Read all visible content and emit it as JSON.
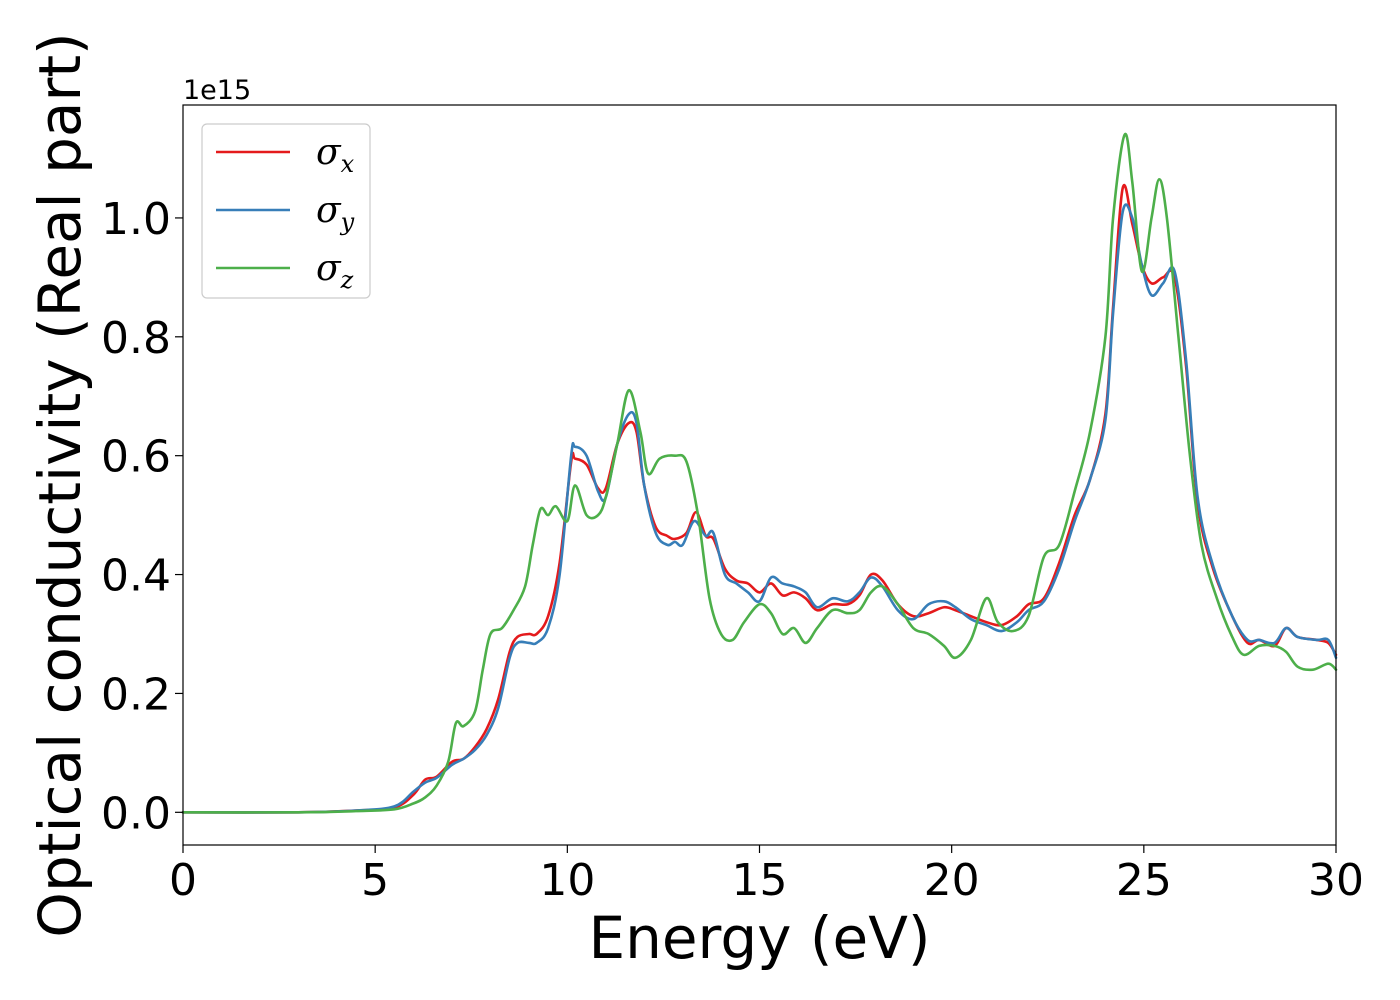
{
  "chart_data": {
    "type": "line",
    "xlabel": "Energy (eV)",
    "ylabel": "Optical conductivity (Real part)",
    "y_offset_label": "1e15",
    "xlim": [
      0,
      30
    ],
    "ylim": [
      -0.055,
      1.19
    ],
    "x_ticks": [
      0,
      5,
      10,
      15,
      20,
      25,
      30
    ],
    "x_tick_labels": [
      "0",
      "5",
      "10",
      "15",
      "20",
      "25",
      "30"
    ],
    "y_ticks": [
      0.0,
      0.2,
      0.4,
      0.6,
      0.8,
      1.0
    ],
    "y_tick_labels": [
      "0.0",
      "0.2",
      "0.4",
      "0.6",
      "0.8",
      "1.0"
    ],
    "grid": false,
    "legend_position": "top-left",
    "series": [
      {
        "name": "σx",
        "symbol": "σ",
        "subscript": "x",
        "color": "#e41a1c",
        "points": [
          [
            0,
            0
          ],
          [
            3,
            0
          ],
          [
            4.5,
            0.003
          ],
          [
            5.5,
            0.008
          ],
          [
            6,
            0.03
          ],
          [
            6.3,
            0.055
          ],
          [
            6.6,
            0.06
          ],
          [
            7,
            0.085
          ],
          [
            7.3,
            0.09
          ],
          [
            7.6,
            0.11
          ],
          [
            7.9,
            0.14
          ],
          [
            8.2,
            0.19
          ],
          [
            8.5,
            0.27
          ],
          [
            8.7,
            0.295
          ],
          [
            9,
            0.3
          ],
          [
            9.2,
            0.3
          ],
          [
            9.5,
            0.33
          ],
          [
            9.8,
            0.42
          ],
          [
            10.1,
            0.59
          ],
          [
            10.2,
            0.595
          ],
          [
            10.5,
            0.585
          ],
          [
            10.8,
            0.545
          ],
          [
            11,
            0.545
          ],
          [
            11.3,
            0.62
          ],
          [
            11.6,
            0.655
          ],
          [
            11.8,
            0.64
          ],
          [
            12,
            0.55
          ],
          [
            12.3,
            0.48
          ],
          [
            12.6,
            0.465
          ],
          [
            12.8,
            0.46
          ],
          [
            13.1,
            0.47
          ],
          [
            13.35,
            0.505
          ],
          [
            13.6,
            0.465
          ],
          [
            13.8,
            0.46
          ],
          [
            14.1,
            0.41
          ],
          [
            14.4,
            0.39
          ],
          [
            14.7,
            0.385
          ],
          [
            15,
            0.37
          ],
          [
            15.3,
            0.385
          ],
          [
            15.6,
            0.365
          ],
          [
            15.9,
            0.37
          ],
          [
            16.2,
            0.36
          ],
          [
            16.5,
            0.34
          ],
          [
            16.9,
            0.35
          ],
          [
            17.3,
            0.35
          ],
          [
            17.6,
            0.365
          ],
          [
            17.9,
            0.4
          ],
          [
            18.2,
            0.39
          ],
          [
            18.6,
            0.35
          ],
          [
            19,
            0.33
          ],
          [
            19.4,
            0.335
          ],
          [
            19.8,
            0.345
          ],
          [
            20.1,
            0.34
          ],
          [
            20.5,
            0.33
          ],
          [
            20.9,
            0.32
          ],
          [
            21.3,
            0.315
          ],
          [
            21.7,
            0.33
          ],
          [
            22,
            0.35
          ],
          [
            22.4,
            0.36
          ],
          [
            22.8,
            0.42
          ],
          [
            23.2,
            0.5
          ],
          [
            23.6,
            0.56
          ],
          [
            24,
            0.67
          ],
          [
            24.2,
            0.85
          ],
          [
            24.45,
            1.05
          ],
          [
            24.7,
            0.99
          ],
          [
            24.95,
            0.92
          ],
          [
            25.2,
            0.89
          ],
          [
            25.5,
            0.9
          ],
          [
            25.8,
            0.9
          ],
          [
            26.1,
            0.75
          ],
          [
            26.4,
            0.52
          ],
          [
            26.8,
            0.41
          ],
          [
            27.3,
            0.33
          ],
          [
            27.7,
            0.285
          ],
          [
            28,
            0.29
          ],
          [
            28.4,
            0.28
          ],
          [
            28.7,
            0.31
          ],
          [
            29,
            0.295
          ],
          [
            29.5,
            0.29
          ],
          [
            29.8,
            0.285
          ],
          [
            30,
            0.265
          ]
        ]
      },
      {
        "name": "σy",
        "symbol": "σ",
        "subscript": "y",
        "color": "#377eb8",
        "points": [
          [
            0,
            0
          ],
          [
            3,
            0
          ],
          [
            4.5,
            0.003
          ],
          [
            5.5,
            0.01
          ],
          [
            6,
            0.035
          ],
          [
            6.3,
            0.05
          ],
          [
            6.6,
            0.058
          ],
          [
            7,
            0.08
          ],
          [
            7.3,
            0.09
          ],
          [
            7.6,
            0.105
          ],
          [
            7.9,
            0.13
          ],
          [
            8.2,
            0.175
          ],
          [
            8.5,
            0.26
          ],
          [
            8.7,
            0.285
          ],
          [
            9,
            0.285
          ],
          [
            9.2,
            0.285
          ],
          [
            9.5,
            0.31
          ],
          [
            9.8,
            0.4
          ],
          [
            10.1,
            0.6
          ],
          [
            10.2,
            0.615
          ],
          [
            10.5,
            0.6
          ],
          [
            10.8,
            0.54
          ],
          [
            11,
            0.53
          ],
          [
            11.3,
            0.62
          ],
          [
            11.6,
            0.67
          ],
          [
            11.8,
            0.655
          ],
          [
            12,
            0.55
          ],
          [
            12.3,
            0.47
          ],
          [
            12.6,
            0.45
          ],
          [
            12.8,
            0.455
          ],
          [
            13,
            0.45
          ],
          [
            13.3,
            0.49
          ],
          [
            13.6,
            0.465
          ],
          [
            13.8,
            0.47
          ],
          [
            14.1,
            0.4
          ],
          [
            14.4,
            0.385
          ],
          [
            14.7,
            0.37
          ],
          [
            15,
            0.355
          ],
          [
            15.3,
            0.395
          ],
          [
            15.6,
            0.385
          ],
          [
            15.9,
            0.38
          ],
          [
            16.2,
            0.37
          ],
          [
            16.5,
            0.345
          ],
          [
            16.9,
            0.36
          ],
          [
            17.3,
            0.355
          ],
          [
            17.6,
            0.37
          ],
          [
            17.9,
            0.395
          ],
          [
            18.2,
            0.38
          ],
          [
            18.6,
            0.34
          ],
          [
            19,
            0.325
          ],
          [
            19.4,
            0.35
          ],
          [
            19.8,
            0.355
          ],
          [
            20.1,
            0.345
          ],
          [
            20.5,
            0.325
          ],
          [
            20.9,
            0.315
          ],
          [
            21.3,
            0.305
          ],
          [
            21.7,
            0.32
          ],
          [
            22,
            0.34
          ],
          [
            22.4,
            0.355
          ],
          [
            22.8,
            0.41
          ],
          [
            23.2,
            0.49
          ],
          [
            23.6,
            0.56
          ],
          [
            24,
            0.66
          ],
          [
            24.2,
            0.84
          ],
          [
            24.45,
            1.01
          ],
          [
            24.7,
            1.0
          ],
          [
            24.95,
            0.92
          ],
          [
            25.2,
            0.87
          ],
          [
            25.5,
            0.89
          ],
          [
            25.8,
            0.91
          ],
          [
            26.1,
            0.76
          ],
          [
            26.4,
            0.53
          ],
          [
            26.8,
            0.415
          ],
          [
            27.3,
            0.33
          ],
          [
            27.7,
            0.29
          ],
          [
            28,
            0.29
          ],
          [
            28.4,
            0.285
          ],
          [
            28.7,
            0.31
          ],
          [
            29,
            0.295
          ],
          [
            29.5,
            0.29
          ],
          [
            29.8,
            0.29
          ],
          [
            30,
            0.26
          ]
        ]
      },
      {
        "name": "σz",
        "symbol": "σ",
        "subscript": "z",
        "color": "#4daf4a",
        "points": [
          [
            0,
            0
          ],
          [
            3,
            0
          ],
          [
            4.5,
            0.002
          ],
          [
            5.5,
            0.005
          ],
          [
            6,
            0.015
          ],
          [
            6.3,
            0.025
          ],
          [
            6.6,
            0.045
          ],
          [
            6.9,
            0.085
          ],
          [
            7.1,
            0.15
          ],
          [
            7.3,
            0.145
          ],
          [
            7.6,
            0.17
          ],
          [
            7.8,
            0.24
          ],
          [
            8,
            0.3
          ],
          [
            8.3,
            0.31
          ],
          [
            8.6,
            0.34
          ],
          [
            8.9,
            0.38
          ],
          [
            9.1,
            0.45
          ],
          [
            9.3,
            0.51
          ],
          [
            9.5,
            0.5
          ],
          [
            9.7,
            0.515
          ],
          [
            10,
            0.49
          ],
          [
            10.2,
            0.55
          ],
          [
            10.5,
            0.5
          ],
          [
            10.8,
            0.5
          ],
          [
            11,
            0.53
          ],
          [
            11.3,
            0.62
          ],
          [
            11.6,
            0.71
          ],
          [
            11.9,
            0.64
          ],
          [
            12.1,
            0.57
          ],
          [
            12.4,
            0.595
          ],
          [
            12.8,
            0.6
          ],
          [
            13.1,
            0.59
          ],
          [
            13.4,
            0.5
          ],
          [
            13.7,
            0.36
          ],
          [
            14,
            0.3
          ],
          [
            14.3,
            0.29
          ],
          [
            14.6,
            0.32
          ],
          [
            15,
            0.35
          ],
          [
            15.3,
            0.335
          ],
          [
            15.6,
            0.3
          ],
          [
            15.9,
            0.31
          ],
          [
            16.2,
            0.285
          ],
          [
            16.5,
            0.31
          ],
          [
            16.9,
            0.34
          ],
          [
            17.3,
            0.335
          ],
          [
            17.6,
            0.34
          ],
          [
            17.9,
            0.37
          ],
          [
            18.2,
            0.38
          ],
          [
            18.6,
            0.35
          ],
          [
            19,
            0.31
          ],
          [
            19.4,
            0.3
          ],
          [
            19.8,
            0.28
          ],
          [
            20.1,
            0.26
          ],
          [
            20.5,
            0.29
          ],
          [
            20.9,
            0.36
          ],
          [
            21.2,
            0.32
          ],
          [
            21.6,
            0.305
          ],
          [
            22,
            0.33
          ],
          [
            22.4,
            0.43
          ],
          [
            22.8,
            0.45
          ],
          [
            23.2,
            0.54
          ],
          [
            23.6,
            0.64
          ],
          [
            24,
            0.8
          ],
          [
            24.2,
            1.0
          ],
          [
            24.5,
            1.14
          ],
          [
            24.7,
            1.06
          ],
          [
            24.95,
            0.91
          ],
          [
            25.2,
            1.0
          ],
          [
            25.4,
            1.065
          ],
          [
            25.6,
            1.0
          ],
          [
            25.9,
            0.8
          ],
          [
            26.2,
            0.6
          ],
          [
            26.5,
            0.45
          ],
          [
            26.9,
            0.36
          ],
          [
            27.3,
            0.295
          ],
          [
            27.6,
            0.265
          ],
          [
            28,
            0.28
          ],
          [
            28.4,
            0.28
          ],
          [
            28.7,
            0.27
          ],
          [
            29,
            0.245
          ],
          [
            29.4,
            0.24
          ],
          [
            29.8,
            0.25
          ],
          [
            30,
            0.24
          ]
        ]
      }
    ]
  }
}
